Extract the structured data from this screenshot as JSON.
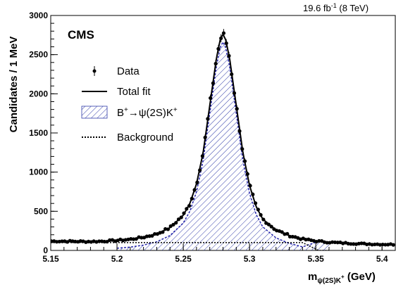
{
  "chart_data": {
    "type": "histogram_fit",
    "experiment_label": "CMS",
    "lumi_label": "19.6 fb",
    "lumi_exponent": "-1",
    "lumi_energy": " (8 TeV)",
    "ylabel": "Candidates / 1 MeV",
    "xlabel_main": "m",
    "xlabel_sub": "ψ(2S)K",
    "xlabel_sup": "+",
    "xlabel_unit": " (GeV)",
    "xlim": [
      5.15,
      5.41
    ],
    "ylim": [
      0,
      3000
    ],
    "x_ticks": [
      "5.15",
      "5.2",
      "5.25",
      "5.3",
      "5.35",
      "5.4"
    ],
    "y_ticks": [
      "0",
      "500",
      "1000",
      "1500",
      "2000",
      "2500",
      "3000"
    ],
    "legend": [
      {
        "label": "Data",
        "style": "marker"
      },
      {
        "label": "Total fit",
        "style": "solid"
      },
      {
        "label_main": "B",
        "label_sup1": "+",
        "label_mid": "→ψ(2S)K",
        "label_sup2": "+",
        "style": "hatched"
      },
      {
        "label": "Background",
        "style": "dotted"
      }
    ],
    "signal_peak": {
      "mass": 5.279,
      "height": 2500
    },
    "background_level": 100,
    "data_points": [
      [
        5.15,
        118
      ],
      [
        5.16,
        118
      ],
      [
        5.17,
        115
      ],
      [
        5.18,
        113
      ],
      [
        5.19,
        118
      ],
      [
        5.2,
        128
      ],
      [
        5.21,
        142
      ],
      [
        5.22,
        168
      ],
      [
        5.23,
        210
      ],
      [
        5.24,
        290
      ],
      [
        5.25,
        450
      ],
      [
        5.255,
        600
      ],
      [
        5.26,
        850
      ],
      [
        5.265,
        1250
      ],
      [
        5.27,
        1850
      ],
      [
        5.275,
        2450
      ],
      [
        5.278,
        2700
      ],
      [
        5.28,
        2760
      ],
      [
        5.282,
        2690
      ],
      [
        5.285,
        2450
      ],
      [
        5.29,
        1850
      ],
      [
        5.295,
        1250
      ],
      [
        5.3,
        830
      ],
      [
        5.305,
        560
      ],
      [
        5.31,
        400
      ],
      [
        5.32,
        260
      ],
      [
        5.33,
        190
      ],
      [
        5.34,
        145
      ],
      [
        5.35,
        120
      ],
      [
        5.36,
        105
      ],
      [
        5.37,
        95
      ],
      [
        5.38,
        88
      ],
      [
        5.39,
        82
      ],
      [
        5.4,
        78
      ],
      [
        5.41,
        76
      ]
    ],
    "colors": {
      "signal": "#2222aa",
      "hatch": "#2f3aa8",
      "axis": "#000000"
    }
  }
}
